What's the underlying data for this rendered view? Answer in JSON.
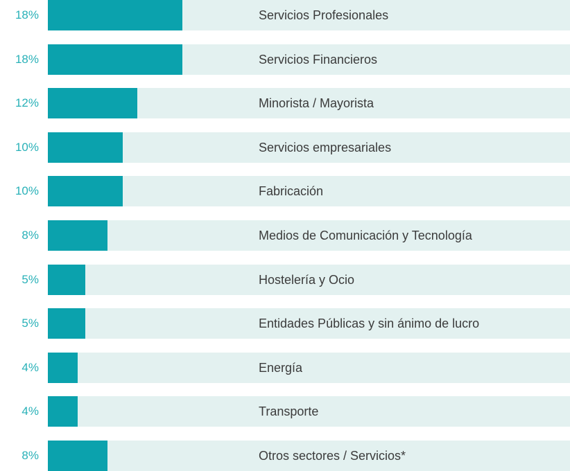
{
  "colors": {
    "bar": "#0ba2ad",
    "track": "#e3f1f0",
    "percent_text": "#29b1b8",
    "label_text": "#3b3b3b"
  },
  "chart_data": {
    "type": "bar",
    "orientation": "horizontal",
    "title": "",
    "xlabel": "",
    "ylabel": "",
    "xlim": [
      0,
      70
    ],
    "grid": false,
    "categories": [
      "Servicios Profesionales",
      "Servicios Financieros",
      "Minorista / Mayorista",
      "Servicios empresariales",
      "Fabricación",
      "Medios de Comunicación y Tecnología",
      "Hostelería y Ocio",
      "Entidades Públicas y sin ánimo de lucro",
      "Energía",
      "Transporte",
      "Otros sectores / Servicios*"
    ],
    "values": [
      18,
      18,
      12,
      10,
      10,
      8,
      5,
      5,
      4,
      4,
      8
    ],
    "value_labels": [
      "18%",
      "18%",
      "12%",
      "10%",
      "10%",
      "8%",
      "5%",
      "5%",
      "4%",
      "4%",
      "8%"
    ]
  }
}
